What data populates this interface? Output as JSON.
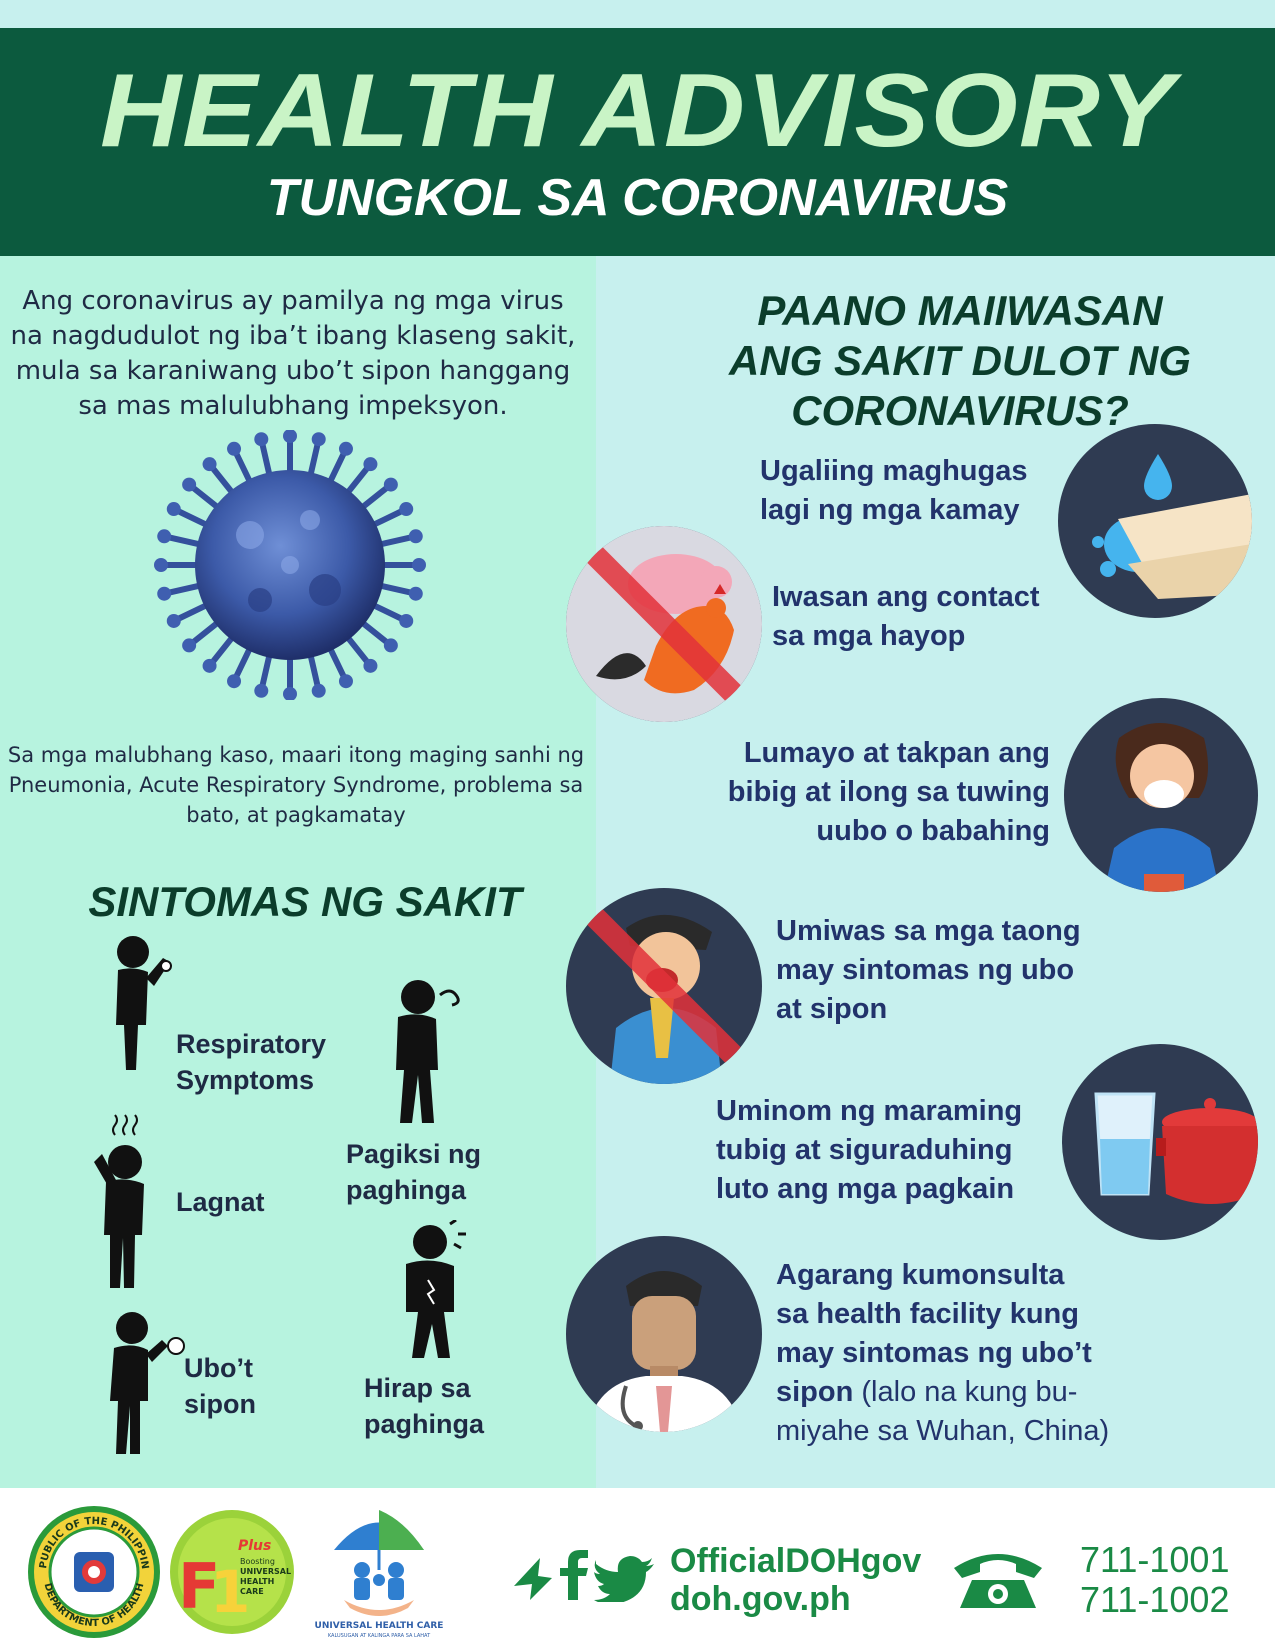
{
  "header": {
    "title": "HEALTH ADVISORY",
    "subtitle": "TUNGKOL SA CORONAVIRUS"
  },
  "left": {
    "intro": "Ang coronavirus ay pamilya ng mga virus na nagdudulot ng iba’t ibang klaseng sakit, mula sa karaniwang ubo’t sipon hanggang sa mas malulubhang impeksyon.",
    "severe": "Sa mga malubhang kaso, maari itong maging sanhi ng Pneumonia, Acute Respiratory Syndrome, problema sa bato, at pagkamatay",
    "symptoms_title": "SINTOMAS NG SAKIT",
    "symptoms": [
      {
        "label_1": "Respiratory",
        "label_2": "Symptoms"
      },
      {
        "label_1": "Pagiksi ng",
        "label_2": "paghinga"
      },
      {
        "label_1": "Lagnat",
        "label_2": ""
      },
      {
        "label_1": "Ubo’t",
        "label_2": "sipon"
      },
      {
        "label_1": "Hirap sa",
        "label_2": "paghinga"
      }
    ]
  },
  "right": {
    "title_1": "PAANO MAIIWASAN",
    "title_2": "ANG SAKIT DULOT NG",
    "title_3": "CORONAVIRUS?",
    "tips": [
      {
        "line_1": "Ugaliing maghugas",
        "line_2": "lagi ng mga kamay",
        "line_3": ""
      },
      {
        "line_1": "Iwasan ang contact",
        "line_2": "sa mga hayop",
        "line_3": ""
      },
      {
        "line_1": "Lumayo at takpan ang",
        "line_2": "bibig at ilong sa tuwing",
        "line_3": "uubo o babahing"
      },
      {
        "line_1": "Umiwas sa mga taong",
        "line_2": "may sintomas ng ubo",
        "line_3": "at sipon"
      },
      {
        "line_1": "Uminom ng maraming",
        "line_2": "tubig at siguraduhing",
        "line_3": "luto ang mga pagkain"
      },
      {
        "line_1": "Agarang kumonsulta",
        "line_2": "sa health facility kung",
        "line_3": "may sintomas ng ubo’t",
        "line_4_bold": "sipon",
        "line_4_rest": " (lalo na kung bu-",
        "line_5": "miyahe sa Wuhan, China)"
      }
    ]
  },
  "footer": {
    "seal_top": "REPUBLIC OF THE PHILIPPINES",
    "seal_bottom": "DEPARTMENT OF HEALTH",
    "f1_plus": "Plus",
    "f1_text_1": "Boosting",
    "f1_text_2": "UNIVERSAL",
    "f1_text_3": "HEALTH",
    "f1_text_4": "CARE",
    "uhc_title": "UNIVERSAL HEALTH CARE",
    "uhc_tagline": "KALUSUGAN AT KALINGA PARA SA LAHAT",
    "social_handle": "OfficialDOHgov",
    "website": "doh.gov.ph",
    "phone_1": "711-1001",
    "phone_2": "711-1002"
  },
  "colors": {
    "header_bg": "#0c5a3e",
    "title": "#c9f4c6",
    "left_bg": "#b7f3df",
    "right_bg": "#c7f0ee",
    "tip_text": "#22336b",
    "footer_green": "#1a8a45",
    "circle_bg": "#2f3b52"
  }
}
